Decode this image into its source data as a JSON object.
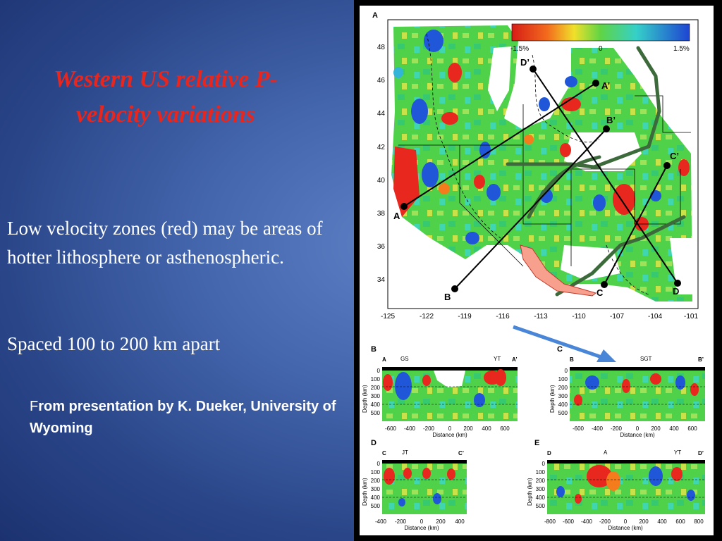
{
  "slide": {
    "title": "Western US relative P-velocity variations",
    "paragraph1": "Low velocity zones (red) may be areas of hotter lithosphere or asthenospheric.",
    "paragraph2": "Spaced 100 to 200 km apart",
    "credit_F": "F",
    "credit_rest": "rom presentation by K.  Dueker, University of Wyoming"
  },
  "map": {
    "panel_label": "A",
    "colorbar": {
      "min_label": "-1.5%",
      "mid_label": "0",
      "max_label": "1.5%"
    },
    "lat_ticks": [
      "48",
      "46",
      "44",
      "42",
      "40",
      "38",
      "36",
      "34"
    ],
    "lon_ticks": [
      "-125",
      "-122",
      "-119",
      "-116",
      "-113",
      "-110",
      "-107",
      "-104",
      "-101"
    ],
    "profile_labels": {
      "A": "A",
      "A2": "A’",
      "B": "B",
      "B2": "B’",
      "C": "C",
      "C2": "C’",
      "D": "D",
      "D2": "D’"
    }
  },
  "sections": {
    "B": {
      "panel": "B",
      "left": "A",
      "right": "A’",
      "marks": [
        "GS",
        "YT"
      ],
      "xticks": [
        "-600",
        "-400",
        "-200",
        "0",
        "200",
        "400",
        "600"
      ]
    },
    "C": {
      "panel": "C",
      "left": "B",
      "right": "B’",
      "marks": [
        "SGT"
      ],
      "xticks": [
        "-600",
        "-400",
        "-200",
        "0",
        "200",
        "400",
        "600"
      ]
    },
    "D": {
      "panel": "D",
      "left": "C",
      "right": "C’",
      "marks": [
        "JT"
      ],
      "xticks": [
        "-400",
        "-200",
        "0",
        "200",
        "400"
      ]
    },
    "E": {
      "panel": "E",
      "left": "D",
      "right": "D’",
      "marks": [
        "A",
        "YT"
      ],
      "xticks": [
        "-800",
        "-600",
        "-400",
        "-200",
        "0",
        "200",
        "400",
        "600",
        "800"
      ]
    },
    "depth_ticks": [
      "0",
      "100",
      "200",
      "300",
      "400",
      "500"
    ],
    "ylabel": "Depth (km)",
    "xlabel": "Distance (km)"
  },
  "colors": {
    "title": "#e8261e",
    "low_velocity": "#e8271e",
    "high_velocity": "#1f57d8",
    "neutral": "#4fd24a",
    "arrow": "#4a86d8"
  }
}
